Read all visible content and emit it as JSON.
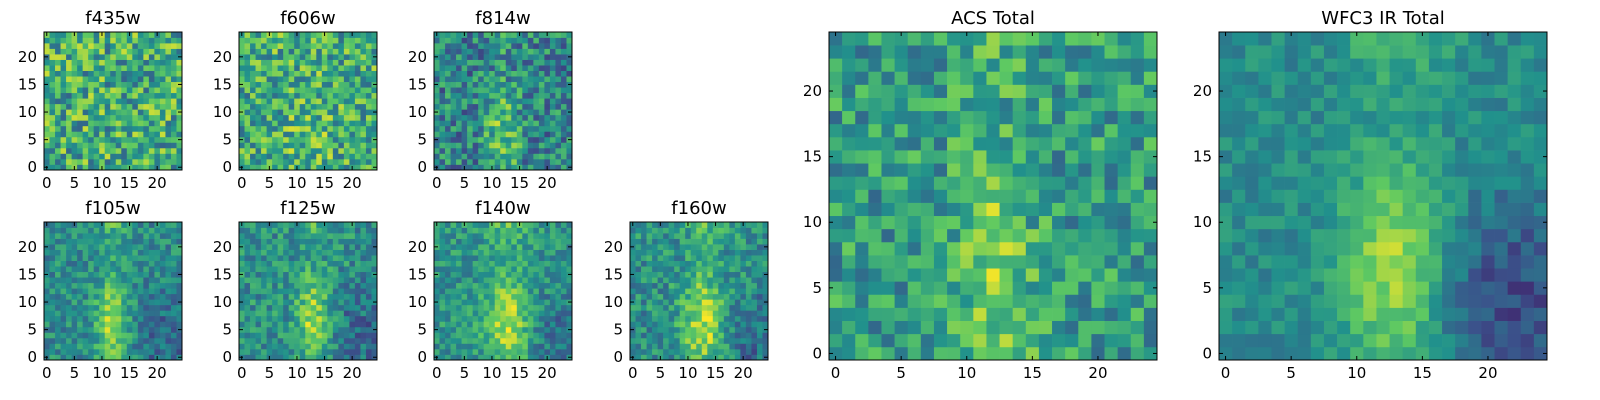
{
  "colormap": [
    "#440154",
    "#3b528b",
    "#21918c",
    "#5ec962",
    "#fde725"
  ],
  "chart_data": [
    {
      "type": "heatmap",
      "title": "f435w",
      "grid_size": 25,
      "xlim": [
        -0.5,
        24.5
      ],
      "ylim": [
        -0.5,
        24.5
      ],
      "xticks": [
        0,
        5,
        10,
        15,
        20
      ],
      "yticks": [
        0,
        5,
        10,
        15,
        20
      ],
      "ticks": {
        "x": [
          "0",
          "5",
          "10",
          "15",
          "20"
        ],
        "y": [
          "0",
          "5",
          "10",
          "15",
          "20"
        ]
      },
      "values_range": [
        0,
        1
      ],
      "pattern": {
        "base": 0.62,
        "noise": 0.3,
        "ridge_x": null,
        "ridge_amp": 0,
        "ridge_width": 4,
        "lowcorner": 0,
        "seed": 11
      }
    },
    {
      "type": "heatmap",
      "title": "f606w",
      "grid_size": 25,
      "xlim": [
        -0.5,
        24.5
      ],
      "ylim": [
        -0.5,
        24.5
      ],
      "xticks": [
        0,
        5,
        10,
        15,
        20
      ],
      "yticks": [
        0,
        5,
        10,
        15,
        20
      ],
      "ticks": {
        "x": [
          "0",
          "5",
          "10",
          "15",
          "20"
        ],
        "y": [
          "0",
          "5",
          "10",
          "15",
          "20"
        ]
      },
      "values_range": [
        0,
        1
      ],
      "pattern": {
        "base": 0.62,
        "noise": 0.28,
        "ridge_x": 12,
        "ridge_amp": 0.08,
        "ridge_width": 4,
        "lowcorner": 0,
        "seed": 23
      }
    },
    {
      "type": "heatmap",
      "title": "f814w",
      "grid_size": 25,
      "xlim": [
        -0.5,
        24.5
      ],
      "ylim": [
        -0.5,
        24.5
      ],
      "xticks": [
        0,
        5,
        10,
        15,
        20
      ],
      "yticks": [
        0,
        5,
        10,
        15,
        20
      ],
      "ticks": {
        "x": [
          "0",
          "5",
          "10",
          "15",
          "20"
        ],
        "y": [
          "0",
          "5",
          "10",
          "15",
          "20"
        ]
      },
      "values_range": [
        0,
        1
      ],
      "pattern": {
        "base": 0.45,
        "noise": 0.25,
        "ridge_x": 12,
        "ridge_amp": 0.3,
        "ridge_width": 3,
        "lowcorner": 0,
        "seed": 37
      }
    },
    {
      "type": "heatmap",
      "title": "f105w",
      "grid_size": 25,
      "xlim": [
        -0.5,
        24.5
      ],
      "ylim": [
        -0.5,
        24.5
      ],
      "xticks": [
        0,
        5,
        10,
        15,
        20
      ],
      "yticks": [
        0,
        5,
        10,
        15,
        20
      ],
      "ticks": {
        "x": [
          "0",
          "5",
          "10",
          "15",
          "20"
        ],
        "y": [
          "0",
          "5",
          "10",
          "15",
          "20"
        ]
      },
      "values_range": [
        0,
        1
      ],
      "pattern": {
        "base": 0.48,
        "noise": 0.16,
        "ridge_x": 12,
        "ridge_amp": 0.4,
        "ridge_width": 3,
        "lowcorner": 0.15,
        "seed": 41
      }
    },
    {
      "type": "heatmap",
      "title": "f125w",
      "grid_size": 25,
      "xlim": [
        -0.5,
        24.5
      ],
      "ylim": [
        -0.5,
        24.5
      ],
      "xticks": [
        0,
        5,
        10,
        15,
        20
      ],
      "yticks": [
        0,
        5,
        10,
        15,
        20
      ],
      "ticks": {
        "x": [
          "0",
          "5",
          "10",
          "15",
          "20"
        ],
        "y": [
          "0",
          "5",
          "10",
          "15",
          "20"
        ]
      },
      "values_range": [
        0,
        1
      ],
      "pattern": {
        "base": 0.5,
        "noise": 0.18,
        "ridge_x": 13,
        "ridge_amp": 0.38,
        "ridge_width": 3,
        "lowcorner": 0.15,
        "seed": 53
      }
    },
    {
      "type": "heatmap",
      "title": "f140w",
      "grid_size": 25,
      "xlim": [
        -0.5,
        24.5
      ],
      "ylim": [
        -0.5,
        24.5
      ],
      "xticks": [
        0,
        5,
        10,
        15,
        20
      ],
      "yticks": [
        0,
        5,
        10,
        15,
        20
      ],
      "ticks": {
        "x": [
          "0",
          "5",
          "10",
          "15",
          "20"
        ],
        "y": [
          "0",
          "5",
          "10",
          "15",
          "20"
        ]
      },
      "values_range": [
        0,
        1
      ],
      "pattern": {
        "base": 0.52,
        "noise": 0.16,
        "ridge_x": 13,
        "ridge_amp": 0.4,
        "ridge_width": 4,
        "lowcorner": 0.15,
        "seed": 67
      }
    },
    {
      "type": "heatmap",
      "title": "f160w",
      "grid_size": 25,
      "xlim": [
        -0.5,
        24.5
      ],
      "ylim": [
        -0.5,
        24.5
      ],
      "xticks": [
        0,
        5,
        10,
        15,
        20
      ],
      "yticks": [
        0,
        5,
        10,
        15,
        20
      ],
      "ticks": {
        "x": [
          "0",
          "5",
          "10",
          "15",
          "20"
        ],
        "y": [
          "0",
          "5",
          "10",
          "15",
          "20"
        ]
      },
      "values_range": [
        0,
        1
      ],
      "pattern": {
        "base": 0.5,
        "noise": 0.18,
        "ridge_x": 13,
        "ridge_amp": 0.42,
        "ridge_width": 4,
        "lowcorner": 0.15,
        "seed": 79
      }
    },
    {
      "type": "heatmap",
      "title": "ACS Total",
      "grid_size": 25,
      "xlim": [
        -0.5,
        24.5
      ],
      "ylim": [
        -0.5,
        24.5
      ],
      "xticks": [
        0,
        5,
        10,
        15,
        20
      ],
      "yticks": [
        0,
        5,
        10,
        15,
        20
      ],
      "ticks": {
        "x": [
          "0",
          "5",
          "10",
          "15",
          "20"
        ],
        "y": [
          "0",
          "5",
          "10",
          "15",
          "20"
        ]
      },
      "values_range": [
        0,
        1
      ],
      "pattern": {
        "base": 0.55,
        "noise": 0.22,
        "ridge_x": 12,
        "ridge_amp": 0.25,
        "ridge_width": 3,
        "lowcorner": 0,
        "seed": 89
      }
    },
    {
      "type": "heatmap",
      "title": "WFC3 IR Total",
      "grid_size": 25,
      "xlim": [
        -0.5,
        24.5
      ],
      "ylim": [
        -0.5,
        24.5
      ],
      "xticks": [
        0,
        5,
        10,
        15,
        20
      ],
      "yticks": [
        0,
        5,
        10,
        15,
        20
      ],
      "ticks": {
        "x": [
          "0",
          "5",
          "10",
          "15",
          "20"
        ],
        "y": [
          "0",
          "5",
          "10",
          "15",
          "20"
        ]
      },
      "values_range": [
        0,
        1
      ],
      "pattern": {
        "base": 0.48,
        "noise": 0.1,
        "ridge_x": 13,
        "ridge_amp": 0.42,
        "ridge_width": 4,
        "lowcorner": 0.25,
        "seed": 97
      }
    }
  ]
}
